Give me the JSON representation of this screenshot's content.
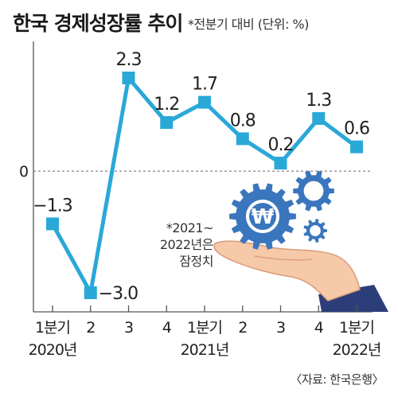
{
  "header": {
    "title": "한국 경제성장률 추이",
    "subtitle": "*전분기 대비 (단위: %)"
  },
  "note": {
    "line1": "*2021~",
    "line2": "2022년은",
    "line3": "잠정치"
  },
  "source": "〈자료: 한국은행〉",
  "colors": {
    "line": "#2aa8d8",
    "marker": "#2aa8d8",
    "gear": "#3a76bd",
    "hand": "#f6c9a8",
    "sleeve": "#2c3e7a"
  },
  "chart_data": {
    "type": "line",
    "x": [
      "1분기",
      "2",
      "3",
      "4",
      "1분기",
      "2",
      "3",
      "4",
      "1분기"
    ],
    "year_labels": [
      "2020년",
      "",
      "",
      "",
      "2021년",
      "",
      "",
      "",
      "2022년"
    ],
    "values": [
      -1.3,
      -3.0,
      2.3,
      1.2,
      1.7,
      0.8,
      0.2,
      1.3,
      0.6
    ],
    "value_labels": [
      "−1.3",
      "−3.0",
      "2.3",
      "1.2",
      "1.7",
      "0.8",
      "0.2",
      "1.3",
      "0.6"
    ],
    "zero_label": "0",
    "ylim": [
      -3.0,
      2.3
    ],
    "grid": false,
    "legend": "none"
  }
}
